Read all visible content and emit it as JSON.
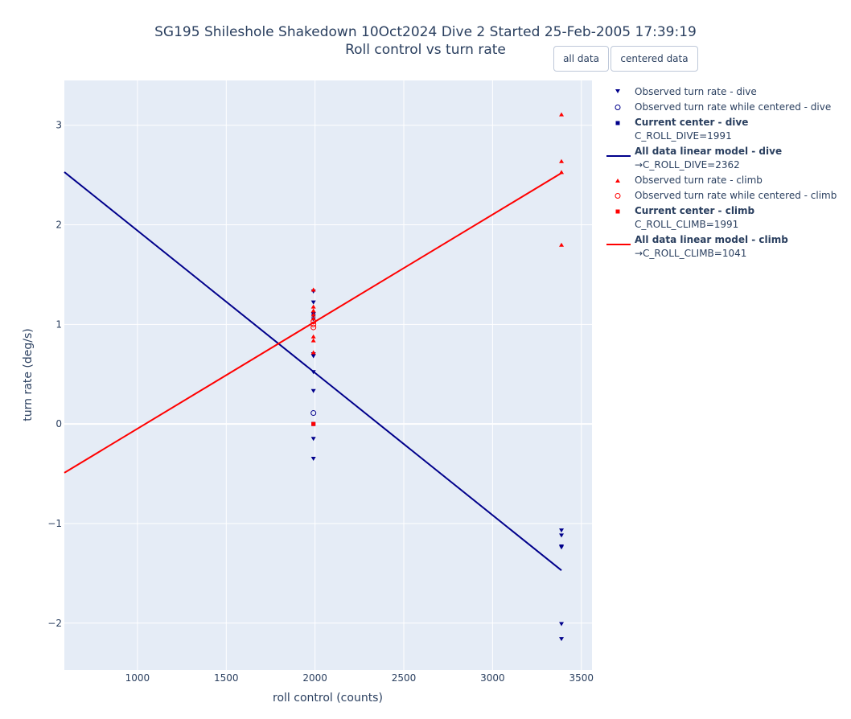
{
  "title": {
    "line1": "SG195 Shileshole Shakedown 10Oct2024 Dive 2 Started 25-Feb-2005 17:39:19",
    "line2": "Roll control vs turn rate"
  },
  "buttons": {
    "all_data": "all data",
    "centered_data": "centered data"
  },
  "colors": {
    "dive": "#00008b",
    "climb": "#ff0000",
    "plot_bg": "#e5ecf6",
    "grid": "#ffffff"
  },
  "legend": {
    "obs_dive": "Observed turn rate - dive",
    "obs_centered_dive": "Observed turn rate while centered - dive",
    "center_dive_title": "Current center - dive",
    "center_dive_value": "C_ROLL_DIVE=1991",
    "model_dive_title": "All data linear model - dive",
    "model_dive_value": "→C_ROLL_DIVE=2362",
    "obs_climb": "Observed turn rate - climb",
    "obs_centered_climb": "Observed turn rate while centered - climb",
    "center_climb_title": "Current center - climb",
    "center_climb_value": "C_ROLL_CLIMB=1991",
    "model_climb_title": "All data linear model - climb",
    "model_climb_value": "→C_ROLL_CLIMB=1041"
  },
  "chart_data": {
    "type": "scatter",
    "xlabel": "roll control (counts)",
    "ylabel": "turn rate (deg/s)",
    "xlim": [
      588,
      3560
    ],
    "ylim": [
      -2.47,
      3.45
    ],
    "x_ticks": [
      1000,
      1500,
      2000,
      2500,
      3000,
      3500
    ],
    "y_ticks": [
      -2,
      -1,
      0,
      1,
      2,
      3
    ],
    "grid": true,
    "legend_position": "right",
    "series": [
      {
        "name": "Observed turn rate - dive",
        "kind": "obs_dive",
        "x": [
          1991,
          1991,
          1991,
          1991,
          1991,
          1991,
          1991,
          1991,
          1991,
          1991,
          1991,
          3388,
          3388,
          3388,
          3388,
          3388,
          3388
        ],
        "y": [
          1.33,
          1.22,
          1.1,
          1.05,
          0.68,
          0.52,
          0.33,
          -0.15,
          -0.35,
          1.08,
          0.7,
          -1.07,
          -1.12,
          -1.23,
          -1.24,
          -2.01,
          -2.16
        ]
      },
      {
        "name": "Observed turn rate while centered - dive",
        "kind": "centered_dive",
        "x": [
          1991
        ],
        "y": [
          0.11
        ]
      },
      {
        "name": "Current center - dive",
        "kind": "center_dive",
        "x": [
          1991
        ],
        "y": [
          0
        ]
      },
      {
        "name": "All data linear model - dive",
        "kind": "model_dive",
        "x": [
          588,
          3388
        ],
        "y": [
          2.53,
          -1.47
        ]
      },
      {
        "name": "Observed turn rate - climb",
        "kind": "obs_climb",
        "x": [
          1991,
          1991,
          1991,
          1991,
          1991,
          1991,
          1991,
          1991,
          3388,
          3388,
          3388,
          3388
        ],
        "y": [
          1.35,
          1.18,
          1.14,
          1.1,
          0.88,
          0.84,
          0.72,
          1.06,
          3.11,
          2.64,
          2.53,
          1.8
        ]
      },
      {
        "name": "Observed turn rate while centered - climb",
        "kind": "centered_climb",
        "x": [
          1991,
          1991,
          1991
        ],
        "y": [
          1.03,
          0.97,
          1.0
        ]
      },
      {
        "name": "Current center - climb",
        "kind": "center_climb",
        "x": [
          1991
        ],
        "y": [
          0
        ]
      },
      {
        "name": "All data linear model - climb",
        "kind": "model_climb",
        "x": [
          588,
          3388
        ],
        "y": [
          -0.49,
          2.52
        ]
      }
    ]
  }
}
